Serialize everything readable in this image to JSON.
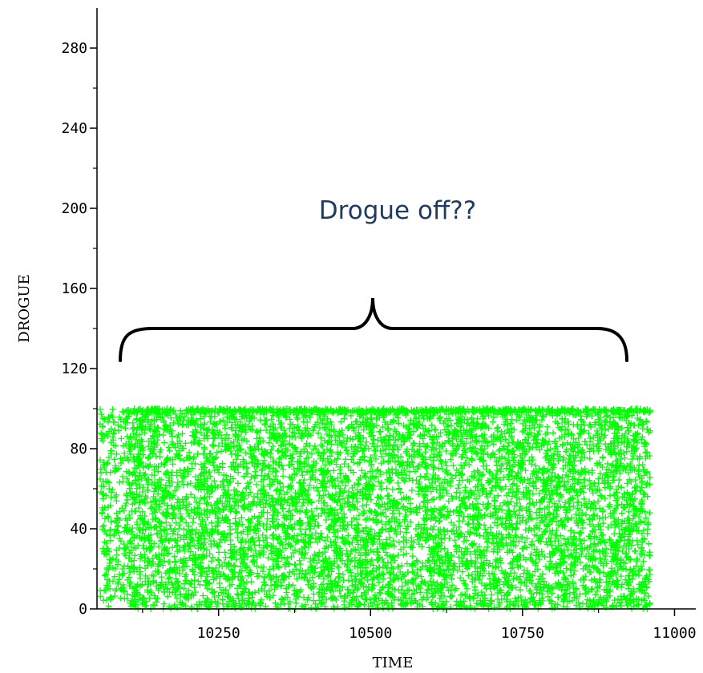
{
  "chart_data": {
    "type": "scatter",
    "xlabel": "TIME",
    "ylabel": "DROGUE",
    "xlim": [
      10050,
      11035
    ],
    "ylim": [
      0,
      300
    ],
    "x_ticks": [
      10250,
      10500,
      10750,
      11000
    ],
    "y_ticks": [
      0,
      40,
      80,
      120,
      160,
      200,
      240,
      280
    ],
    "grid": false,
    "marker": "+",
    "series": [
      {
        "color": "#00ff00",
        "x_range": [
          10055,
          10960
        ],
        "y_range": [
          0,
          100
        ],
        "description_points": [
          [
            10060,
            95
          ],
          [
            10070,
            60
          ],
          [
            10080,
            20
          ],
          [
            10090,
            85
          ],
          [
            10100,
            5
          ],
          [
            10150,
            100
          ],
          [
            10250,
            50
          ],
          [
            10350,
            75
          ],
          [
            10450,
            30
          ],
          [
            10500,
            90
          ],
          [
            10600,
            10
          ],
          [
            10700,
            65
          ],
          [
            10800,
            45
          ],
          [
            10900,
            80
          ],
          [
            10955,
            0
          ]
        ]
      }
    ],
    "annotation": {
      "text": "Drogue off??",
      "bracket_x_range": [
        10090,
        10960
      ]
    }
  }
}
